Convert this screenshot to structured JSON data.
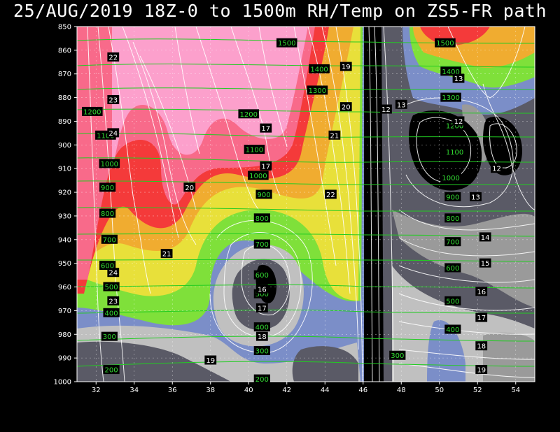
{
  "title": "25/AUG/2019 18Z-0 to 1500m RH/Temp on ZS5-FR path",
  "colors": {
    "background": "#000000",
    "rh_fills": [
      "#000000",
      "#5a5a66",
      "#9a9a9a",
      "#c0c0c0",
      "#7b8ec8",
      "#7fe03a",
      "#e8e03a",
      "#f0ac30",
      "#f43a3a",
      "#f86a8a",
      "#fca0cc"
    ],
    "height_contour": "#22cc22",
    "temp_contour": "#ffffff"
  },
  "chart_data": {
    "type": "contour",
    "title": "25/AUG/2019 18Z-0 to 1500m RH/Temp on ZS5-FR path",
    "xlabel": "",
    "ylabel": "",
    "xlim": [
      31,
      55
    ],
    "ylim": [
      1000,
      850
    ],
    "x_ticks": [
      32,
      34,
      36,
      38,
      40,
      42,
      44,
      46,
      48,
      50,
      52,
      54
    ],
    "y_ticks": [
      850,
      860,
      870,
      880,
      890,
      900,
      910,
      920,
      930,
      940,
      950,
      960,
      970,
      980,
      990,
      1000
    ],
    "grid": true,
    "height_labels": [
      {
        "text": "1500",
        "x": 42.0,
        "y": 857
      },
      {
        "text": "1400",
        "x": 43.7,
        "y": 868
      },
      {
        "text": "1300",
        "x": 43.6,
        "y": 877
      },
      {
        "text": "1200",
        "x": 31.8,
        "y": 886
      },
      {
        "text": "1200",
        "x": 40.0,
        "y": 887
      },
      {
        "text": "1100",
        "x": 32.5,
        "y": 896
      },
      {
        "text": "1100",
        "x": 40.3,
        "y": 902
      },
      {
        "text": "1000",
        "x": 32.7,
        "y": 908
      },
      {
        "text": "1000",
        "x": 40.5,
        "y": 913
      },
      {
        "text": "900",
        "x": 32.6,
        "y": 918
      },
      {
        "text": "900",
        "x": 40.8,
        "y": 921
      },
      {
        "text": "800",
        "x": 32.6,
        "y": 929
      },
      {
        "text": "800",
        "x": 40.7,
        "y": 931
      },
      {
        "text": "700",
        "x": 32.7,
        "y": 940
      },
      {
        "text": "700",
        "x": 40.7,
        "y": 942
      },
      {
        "text": "600",
        "x": 32.6,
        "y": 951
      },
      {
        "text": "600",
        "x": 40.7,
        "y": 955
      },
      {
        "text": "500",
        "x": 32.8,
        "y": 960
      },
      {
        "text": "500",
        "x": 40.7,
        "y": 963
      },
      {
        "text": "400",
        "x": 32.8,
        "y": 971
      },
      {
        "text": "400",
        "x": 40.7,
        "y": 977
      },
      {
        "text": "300",
        "x": 32.7,
        "y": 981
      },
      {
        "text": "300",
        "x": 40.7,
        "y": 987
      },
      {
        "text": "200",
        "x": 32.8,
        "y": 995
      },
      {
        "text": "200",
        "x": 40.7,
        "y": 999
      },
      {
        "text": "1500",
        "x": 50.3,
        "y": 857
      },
      {
        "text": "1400",
        "x": 50.6,
        "y": 869
      },
      {
        "text": "1300",
        "x": 50.6,
        "y": 880
      },
      {
        "text": "1200",
        "x": 50.8,
        "y": 892
      },
      {
        "text": "1100",
        "x": 50.8,
        "y": 903
      },
      {
        "text": "1000",
        "x": 50.6,
        "y": 914
      },
      {
        "text": "900",
        "x": 50.7,
        "y": 922
      },
      {
        "text": "800",
        "x": 50.7,
        "y": 931
      },
      {
        "text": "700",
        "x": 50.7,
        "y": 941
      },
      {
        "text": "600",
        "x": 50.7,
        "y": 952
      },
      {
        "text": "500",
        "x": 50.7,
        "y": 966
      },
      {
        "text": "400",
        "x": 50.7,
        "y": 978
      },
      {
        "text": "300",
        "x": 47.8,
        "y": 989
      }
    ],
    "temp_labels": [
      {
        "text": "22",
        "x": 32.9,
        "y": 863
      },
      {
        "text": "23",
        "x": 32.9,
        "y": 881
      },
      {
        "text": "24",
        "x": 32.9,
        "y": 895
      },
      {
        "text": "24",
        "x": 32.9,
        "y": 954
      },
      {
        "text": "23",
        "x": 32.9,
        "y": 966
      },
      {
        "text": "21",
        "x": 35.7,
        "y": 946
      },
      {
        "text": "20",
        "x": 36.9,
        "y": 918
      },
      {
        "text": "19",
        "x": 38.0,
        "y": 991
      },
      {
        "text": "17",
        "x": 40.9,
        "y": 893
      },
      {
        "text": "17",
        "x": 40.9,
        "y": 909
      },
      {
        "text": "16",
        "x": 40.7,
        "y": 961
      },
      {
        "text": "17",
        "x": 40.7,
        "y": 969
      },
      {
        "text": "18",
        "x": 40.7,
        "y": 981
      },
      {
        "text": "19",
        "x": 45.1,
        "y": 867
      },
      {
        "text": "20",
        "x": 45.1,
        "y": 884
      },
      {
        "text": "21",
        "x": 44.5,
        "y": 896
      },
      {
        "text": "22",
        "x": 44.3,
        "y": 921
      },
      {
        "text": "12",
        "x": 47.2,
        "y": 885
      },
      {
        "text": "13",
        "x": 48.0,
        "y": 883
      },
      {
        "text": "13",
        "x": 51.0,
        "y": 872
      },
      {
        "text": "12",
        "x": 51.0,
        "y": 890
      },
      {
        "text": "12",
        "x": 53.0,
        "y": 910
      },
      {
        "text": "13",
        "x": 51.9,
        "y": 922
      },
      {
        "text": "14",
        "x": 52.4,
        "y": 939
      },
      {
        "text": "15",
        "x": 52.4,
        "y": 950
      },
      {
        "text": "16",
        "x": 52.2,
        "y": 962
      },
      {
        "text": "17",
        "x": 52.2,
        "y": 973
      },
      {
        "text": "18",
        "x": 52.2,
        "y": 985
      },
      {
        "text": "19",
        "x": 52.2,
        "y": 995
      }
    ]
  }
}
